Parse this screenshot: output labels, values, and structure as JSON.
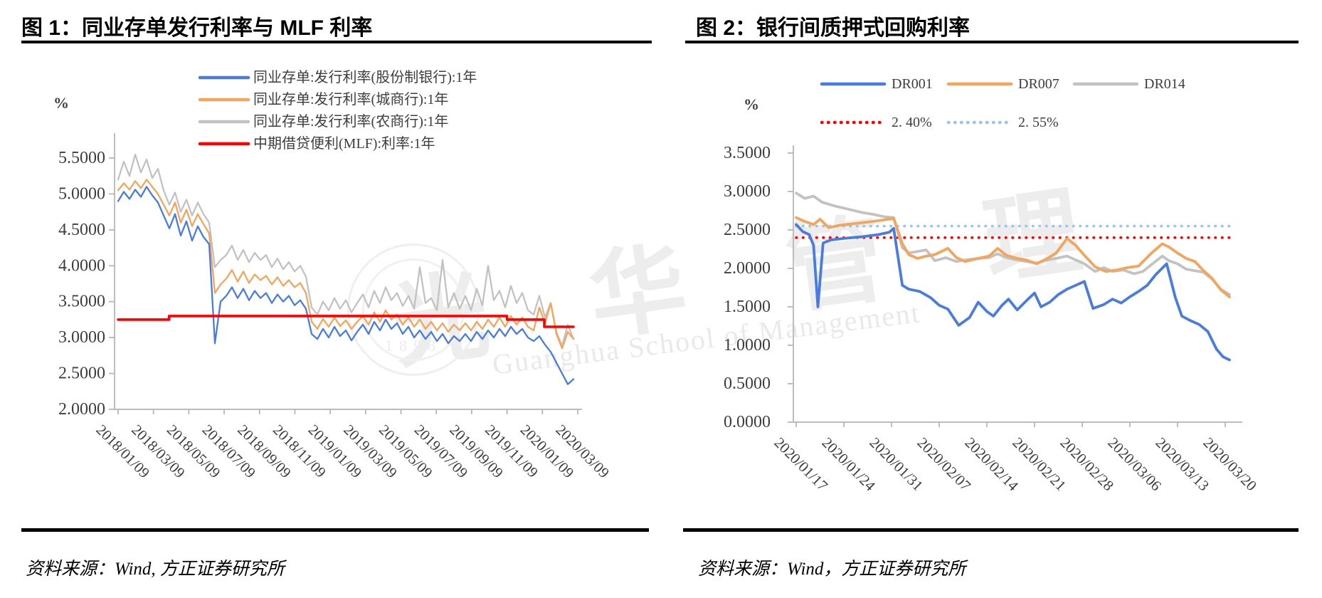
{
  "watermark": {
    "cjk": "光华管理",
    "latin": "Guanghua School of Management",
    "year": "1898"
  },
  "chart_data": [
    {
      "type": "line",
      "title": "图 1：同业存单发行利率与 MLF 利率",
      "source": "资料来源：Wind, 方正证券研究所",
      "unit": "%",
      "ylabel": "%",
      "grid": false,
      "legend_position": "top-inside-vertical",
      "y_range": [
        2.0,
        5.5
      ],
      "y_ticks": [
        "5.5000",
        "5.0000",
        "4.5000",
        "4.0000",
        "3.5000",
        "3.0000",
        "2.5000",
        "2.0000"
      ],
      "x_tick_labels": [
        "2018/01/09",
        "2018/03/09",
        "2018/05/09",
        "2018/07/09",
        "2018/09/09",
        "2018/11/09",
        "2019/01/09",
        "2019/03/09",
        "2019/05/09",
        "2019/07/09",
        "2019/09/09",
        "2019/11/09",
        "2020/01/09",
        "2020/03/09"
      ],
      "legend": [
        {
          "label": "同业存单:发行利率(股份制银行):1年",
          "color": "#4a7ce0",
          "dotted": false
        },
        {
          "label": "同业存单:发行利率(城商行):1年",
          "color": "#f4a55c",
          "dotted": false
        },
        {
          "label": "同业存单:发行利率(农商行):1年",
          "color": "#c2c2c2",
          "dotted": false
        },
        {
          "label": "中期借贷便利(MLF):利率:1年",
          "color": "#ff0000",
          "dotted": false
        }
      ],
      "series": [
        {
          "name": "同业存单:发行利率(农商行):1年",
          "color": "#c2c2c2",
          "width": 2.3,
          "values": [
            5.2,
            5.45,
            5.25,
            5.55,
            5.3,
            5.48,
            5.22,
            5.35,
            5.05,
            4.85,
            5.02,
            4.75,
            4.92,
            4.7,
            4.88,
            4.72,
            4.6,
            3.98,
            4.08,
            4.15,
            4.28,
            4.08,
            4.22,
            4.05,
            4.18,
            4.08,
            4.15,
            3.98,
            4.1,
            3.95,
            4.05,
            3.92,
            4.0,
            3.85,
            3.42,
            3.32,
            3.5,
            3.38,
            3.55,
            3.4,
            3.52,
            3.35,
            3.48,
            3.6,
            3.42,
            3.65,
            3.48,
            3.7,
            3.52,
            3.62,
            3.44,
            3.58,
            3.4,
            3.98,
            3.48,
            3.55,
            3.38,
            4.08,
            3.42,
            3.62,
            3.4,
            3.58,
            3.38,
            3.68,
            3.45,
            4.0,
            3.52,
            3.65,
            3.42,
            3.72,
            3.48,
            3.62,
            3.38,
            3.32,
            3.58,
            3.28,
            3.48,
            3.08,
            2.88,
            3.18,
            2.98
          ]
        },
        {
          "name": "同业存单:发行利率(城商行):1年",
          "color": "#f4a55c",
          "width": 2.3,
          "values": [
            5.05,
            5.15,
            5.06,
            5.18,
            5.08,
            5.2,
            5.1,
            5.0,
            4.85,
            4.7,
            4.88,
            4.6,
            4.78,
            4.55,
            4.72,
            4.58,
            4.45,
            3.62,
            3.74,
            3.82,
            3.94,
            3.78,
            3.92,
            3.76,
            3.88,
            3.8,
            3.86,
            3.74,
            3.84,
            3.72,
            3.8,
            3.7,
            3.76,
            3.62,
            3.22,
            3.12,
            3.26,
            3.15,
            3.28,
            3.16,
            3.24,
            3.12,
            3.22,
            3.3,
            3.18,
            3.35,
            3.22,
            3.38,
            3.25,
            3.32,
            3.18,
            3.28,
            3.15,
            3.25,
            3.12,
            3.22,
            3.1,
            3.2,
            3.08,
            3.18,
            3.1,
            3.2,
            3.1,
            3.22,
            3.12,
            3.25,
            3.15,
            3.28,
            3.15,
            3.3,
            3.18,
            3.28,
            3.15,
            3.1,
            3.42,
            3.2,
            3.48,
            3.05,
            2.85,
            3.08,
            2.98
          ]
        },
        {
          "name": "同业存单:发行利率(股份制银行):1年",
          "color": "#4a7ce0",
          "width": 2.3,
          "values": [
            4.9,
            5.03,
            4.93,
            5.06,
            4.96,
            5.1,
            4.98,
            4.88,
            4.7,
            4.52,
            4.72,
            4.42,
            4.62,
            4.35,
            4.55,
            4.4,
            4.3,
            2.92,
            3.5,
            3.58,
            3.7,
            3.55,
            3.68,
            3.52,
            3.65,
            3.55,
            3.62,
            3.48,
            3.6,
            3.5,
            3.58,
            3.45,
            3.52,
            3.4,
            3.05,
            2.98,
            3.12,
            3.0,
            3.15,
            3.02,
            3.1,
            2.96,
            3.08,
            3.18,
            3.05,
            3.22,
            3.1,
            3.25,
            3.12,
            3.2,
            3.05,
            3.15,
            3.0,
            3.1,
            2.98,
            3.08,
            2.95,
            3.05,
            2.92,
            3.02,
            2.95,
            3.05,
            2.95,
            3.08,
            2.98,
            3.1,
            3.0,
            3.12,
            3.02,
            3.15,
            3.05,
            3.12,
            3.0,
            2.95,
            3.02,
            2.9,
            2.8,
            2.65,
            2.5,
            2.35,
            2.42
          ]
        },
        {
          "name": "中期借贷便利(MLF):利率:1年",
          "color": "#ff0000",
          "width": 3.6,
          "points": [
            [
              0,
              3.25
            ],
            [
              0.112,
              3.25
            ],
            [
              0.112,
              3.3
            ],
            [
              0.854,
              3.3
            ],
            [
              0.854,
              3.25
            ],
            [
              0.936,
              3.25
            ],
            [
              0.936,
              3.15
            ],
            [
              1.0,
              3.15
            ]
          ]
        }
      ]
    },
    {
      "type": "line",
      "title": "图 2：银行间质押式回购利率",
      "source": "资料来源：Wind，方正证券研究所",
      "unit": "%",
      "ylabel": "%",
      "grid": false,
      "legend_position": "top-inside-rows",
      "y_range": [
        0.0,
        3.5
      ],
      "y_ticks": [
        "3.5000",
        "3.0000",
        "2.5000",
        "2.0000",
        "1.5000",
        "1.0000",
        "0.5000",
        "0.0000"
      ],
      "x_tick_labels": [
        "2020/01/17",
        "2020/01/24",
        "2020/01/31",
        "2020/02/07",
        "2020/02/14",
        "2020/02/21",
        "2020/02/28",
        "2020/03/06",
        "2020/03/13",
        "2020/03/20"
      ],
      "legend": [
        {
          "label": "DR001",
          "color": "#4a7ce0",
          "dotted": false
        },
        {
          "label": "DR007",
          "color": "#f4a55c",
          "dotted": false
        },
        {
          "label": "DR014",
          "color": "#c2c2c2",
          "dotted": false
        },
        {
          "label": "2. 40%",
          "color": "#ff0000",
          "dotted": true
        },
        {
          "label": "2. 55%",
          "color": "#9dc3e6",
          "dotted": true
        }
      ],
      "series": [
        {
          "name": "2. 40%",
          "color": "#ff0000",
          "width": 3.6,
          "dotted": true,
          "points": [
            [
              0,
              2.4
            ],
            [
              1.01,
              2.4
            ]
          ]
        },
        {
          "name": "2. 55%",
          "color": "#9dc3e6",
          "width": 3.6,
          "dotted": true,
          "points": [
            [
              0,
              2.55
            ],
            [
              1.01,
              2.55
            ]
          ]
        },
        {
          "name": "DR014",
          "color": "#c2c2c2",
          "width": 3.8,
          "points": [
            [
              0,
              2.98
            ],
            [
              0.02,
              2.91
            ],
            [
              0.04,
              2.94
            ],
            [
              0.06,
              2.86
            ],
            [
              0.09,
              2.81
            ],
            [
              0.12,
              2.77
            ],
            [
              0.15,
              2.73
            ],
            [
              0.18,
              2.7
            ],
            [
              0.205,
              2.67
            ],
            [
              0.225,
              2.66
            ],
            [
              0.245,
              2.27
            ],
            [
              0.26,
              2.2
            ],
            [
              0.28,
              2.22
            ],
            [
              0.3,
              2.24
            ],
            [
              0.32,
              2.1
            ],
            [
              0.345,
              2.14
            ],
            [
              0.37,
              2.09
            ],
            [
              0.39,
              2.11
            ],
            [
              0.42,
              2.13
            ],
            [
              0.445,
              2.14
            ],
            [
              0.465,
              2.19
            ],
            [
              0.485,
              2.14
            ],
            [
              0.51,
              2.11
            ],
            [
              0.53,
              2.09
            ],
            [
              0.555,
              2.07
            ],
            [
              0.58,
              2.11
            ],
            [
              0.6,
              2.13
            ],
            [
              0.625,
              2.16
            ],
            [
              0.645,
              2.11
            ],
            [
              0.665,
              2.06
            ],
            [
              0.69,
              1.96
            ],
            [
              0.71,
              2.01
            ],
            [
              0.73,
              1.96
            ],
            [
              0.755,
              1.98
            ],
            [
              0.78,
              1.93
            ],
            [
              0.8,
              1.96
            ],
            [
              0.82,
              2.05
            ],
            [
              0.845,
              2.16
            ],
            [
              0.86,
              2.1
            ],
            [
              0.88,
              2.06
            ],
            [
              0.9,
              1.99
            ],
            [
              0.92,
              1.97
            ],
            [
              0.94,
              1.95
            ],
            [
              0.96,
              1.86
            ],
            [
              0.98,
              1.73
            ],
            [
              1.0,
              1.66
            ]
          ]
        },
        {
          "name": "DR007",
          "color": "#f4a55c",
          "width": 3.8,
          "points": [
            [
              0,
              2.66
            ],
            [
              0.02,
              2.61
            ],
            [
              0.04,
              2.57
            ],
            [
              0.055,
              2.64
            ],
            [
              0.075,
              2.53
            ],
            [
              0.1,
              2.56
            ],
            [
              0.13,
              2.58
            ],
            [
              0.16,
              2.6
            ],
            [
              0.19,
              2.62
            ],
            [
              0.225,
              2.65
            ],
            [
              0.245,
              2.32
            ],
            [
              0.26,
              2.18
            ],
            [
              0.28,
              2.13
            ],
            [
              0.3,
              2.16
            ],
            [
              0.32,
              2.18
            ],
            [
              0.35,
              2.26
            ],
            [
              0.37,
              2.14
            ],
            [
              0.39,
              2.09
            ],
            [
              0.42,
              2.13
            ],
            [
              0.445,
              2.16
            ],
            [
              0.465,
              2.26
            ],
            [
              0.485,
              2.17
            ],
            [
              0.51,
              2.13
            ],
            [
              0.53,
              2.11
            ],
            [
              0.555,
              2.06
            ],
            [
              0.58,
              2.13
            ],
            [
              0.6,
              2.2
            ],
            [
              0.625,
              2.39
            ],
            [
              0.645,
              2.3
            ],
            [
              0.665,
              2.17
            ],
            [
              0.69,
              2.02
            ],
            [
              0.715,
              1.96
            ],
            [
              0.74,
              1.98
            ],
            [
              0.765,
              2.01
            ],
            [
              0.79,
              2.03
            ],
            [
              0.82,
              2.2
            ],
            [
              0.845,
              2.32
            ],
            [
              0.86,
              2.28
            ],
            [
              0.88,
              2.2
            ],
            [
              0.9,
              2.13
            ],
            [
              0.92,
              2.09
            ],
            [
              0.94,
              1.97
            ],
            [
              0.96,
              1.87
            ],
            [
              0.98,
              1.72
            ],
            [
              1.0,
              1.63
            ]
          ]
        },
        {
          "name": "DR001",
          "color": "#4a7ce0",
          "width": 3.8,
          "points": [
            [
              0,
              2.57
            ],
            [
              0.015,
              2.48
            ],
            [
              0.03,
              2.44
            ],
            [
              0.04,
              2.3
            ],
            [
              0.05,
              1.5
            ],
            [
              0.062,
              2.33
            ],
            [
              0.08,
              2.37
            ],
            [
              0.11,
              2.39
            ],
            [
              0.15,
              2.41
            ],
            [
              0.19,
              2.44
            ],
            [
              0.215,
              2.47
            ],
            [
              0.225,
              2.52
            ],
            [
              0.245,
              1.78
            ],
            [
              0.26,
              1.73
            ],
            [
              0.285,
              1.7
            ],
            [
              0.31,
              1.62
            ],
            [
              0.33,
              1.52
            ],
            [
              0.35,
              1.47
            ],
            [
              0.375,
              1.26
            ],
            [
              0.4,
              1.36
            ],
            [
              0.42,
              1.56
            ],
            [
              0.44,
              1.44
            ],
            [
              0.455,
              1.38
            ],
            [
              0.475,
              1.52
            ],
            [
              0.49,
              1.6
            ],
            [
              0.51,
              1.46
            ],
            [
              0.535,
              1.6
            ],
            [
              0.55,
              1.68
            ],
            [
              0.565,
              1.5
            ],
            [
              0.585,
              1.56
            ],
            [
              0.605,
              1.66
            ],
            [
              0.625,
              1.73
            ],
            [
              0.645,
              1.78
            ],
            [
              0.665,
              1.83
            ],
            [
              0.685,
              1.48
            ],
            [
              0.71,
              1.53
            ],
            [
              0.73,
              1.6
            ],
            [
              0.75,
              1.55
            ],
            [
              0.77,
              1.63
            ],
            [
              0.79,
              1.7
            ],
            [
              0.81,
              1.78
            ],
            [
              0.83,
              1.92
            ],
            [
              0.855,
              2.06
            ],
            [
              0.875,
              1.62
            ],
            [
              0.89,
              1.38
            ],
            [
              0.91,
              1.32
            ],
            [
              0.93,
              1.27
            ],
            [
              0.95,
              1.18
            ],
            [
              0.97,
              0.95
            ],
            [
              0.985,
              0.85
            ],
            [
              1.0,
              0.81
            ]
          ]
        }
      ]
    }
  ]
}
